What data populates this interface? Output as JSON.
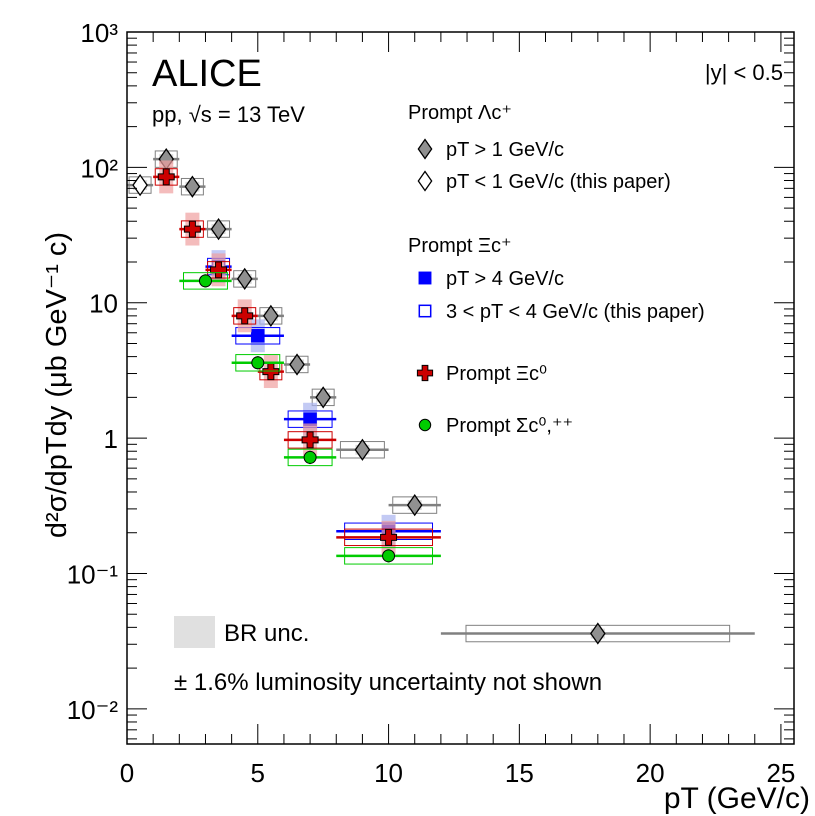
{
  "chart_data": {
    "type": "scatter",
    "experiment_label": "ALICE",
    "system_label": "pp, √s = 13 TeV",
    "rapidity_label": "|y| < 0.5",
    "xlabel": "pT (GeV/c)",
    "ylabel": "d²σ/dpTdy (μb GeV⁻¹ c)",
    "xlim": [
      0,
      25.5
    ],
    "ylim": [
      0.0055,
      1000
    ],
    "y_scale": "log",
    "x_ticks": [
      "0",
      "5",
      "10",
      "15",
      "20",
      "25"
    ],
    "y_ticks": [
      "10⁻²",
      "10⁻¹",
      "1",
      "10",
      "10²",
      "10³"
    ],
    "legend_groups": [
      {
        "header": "Prompt Λc⁺",
        "entries": [
          "pT > 1 GeV/c",
          "pT < 1 GeV/c (this paper)"
        ]
      },
      {
        "header": "Prompt Ξc⁺",
        "entries": [
          "pT > 4 GeV/c",
          "3 < pT < 4 GeV/c (this paper)"
        ]
      },
      {
        "header": "",
        "entries": [
          "Prompt Ξc⁰",
          "Prompt Σc⁰,⁺⁺"
        ]
      }
    ],
    "br_label": "BR unc.",
    "lumi_note": "± 1.6% luminosity uncertainty not shown",
    "series": [
      {
        "name": "Prompt Λc⁺ pT > 1 GeV/c",
        "color": "#808080",
        "marker": "diamond-filled",
        "points": [
          {
            "x": 1.5,
            "y": 115,
            "xerr": 0.5
          },
          {
            "x": 2.5,
            "y": 72,
            "xerr": 0.5
          },
          {
            "x": 3.5,
            "y": 35,
            "xerr": 0.5
          },
          {
            "x": 4.5,
            "y": 15,
            "xerr": 0.5
          },
          {
            "x": 5.5,
            "y": 8.0,
            "xerr": 0.5
          },
          {
            "x": 6.5,
            "y": 3.5,
            "xerr": 0.5
          },
          {
            "x": 7.5,
            "y": 2.0,
            "xerr": 0.5
          },
          {
            "x": 9.0,
            "y": 0.82,
            "xerr": 1.0
          },
          {
            "x": 11.0,
            "y": 0.32,
            "xerr": 1.0
          },
          {
            "x": 18.0,
            "y": 0.036,
            "xerr": 6.0
          }
        ]
      },
      {
        "name": "Prompt Λc⁺ pT < 1 GeV/c (this paper)",
        "color": "#808080",
        "marker": "diamond-open",
        "points": [
          {
            "x": 0.5,
            "y": 74,
            "xerr": 0.5
          }
        ]
      },
      {
        "name": "Prompt Ξc⁺ pT > 4 GeV/c",
        "color": "#0000ff",
        "marker": "square-filled",
        "points": [
          {
            "x": 5.0,
            "y": 5.7,
            "xerr": 1.0
          },
          {
            "x": 7.0,
            "y": 1.38,
            "xerr": 1.0
          },
          {
            "x": 10.0,
            "y": 0.205,
            "xerr": 2.0
          }
        ]
      },
      {
        "name": "Prompt Ξc⁺ 3 < pT < 4 GeV/c (this paper)",
        "color": "#0000ff",
        "marker": "square-open",
        "points": [
          {
            "x": 3.5,
            "y": 18.5,
            "xerr": 0.5
          }
        ]
      },
      {
        "name": "Prompt Ξc⁰",
        "color": "#cc0000",
        "marker": "cross-filled",
        "points": [
          {
            "x": 1.5,
            "y": 85,
            "xerr": 0.5
          },
          {
            "x": 2.5,
            "y": 35,
            "xerr": 0.5
          },
          {
            "x": 3.5,
            "y": 17.5,
            "xerr": 0.5
          },
          {
            "x": 4.5,
            "y": 8.0,
            "xerr": 0.5
          },
          {
            "x": 5.5,
            "y": 3.1,
            "xerr": 0.5
          },
          {
            "x": 7.0,
            "y": 0.97,
            "xerr": 1.0
          },
          {
            "x": 10.0,
            "y": 0.185,
            "xerr": 2.0
          }
        ]
      },
      {
        "name": "Prompt Σc⁰,⁺⁺",
        "color": "#00cc00",
        "marker": "circle-filled",
        "points": [
          {
            "x": 3.0,
            "y": 14.5,
            "xerr": 1.0
          },
          {
            "x": 5.0,
            "y": 3.6,
            "xerr": 1.0
          },
          {
            "x": 7.0,
            "y": 0.72,
            "xerr": 1.0
          },
          {
            "x": 10.0,
            "y": 0.135,
            "xerr": 2.0
          }
        ]
      }
    ]
  }
}
